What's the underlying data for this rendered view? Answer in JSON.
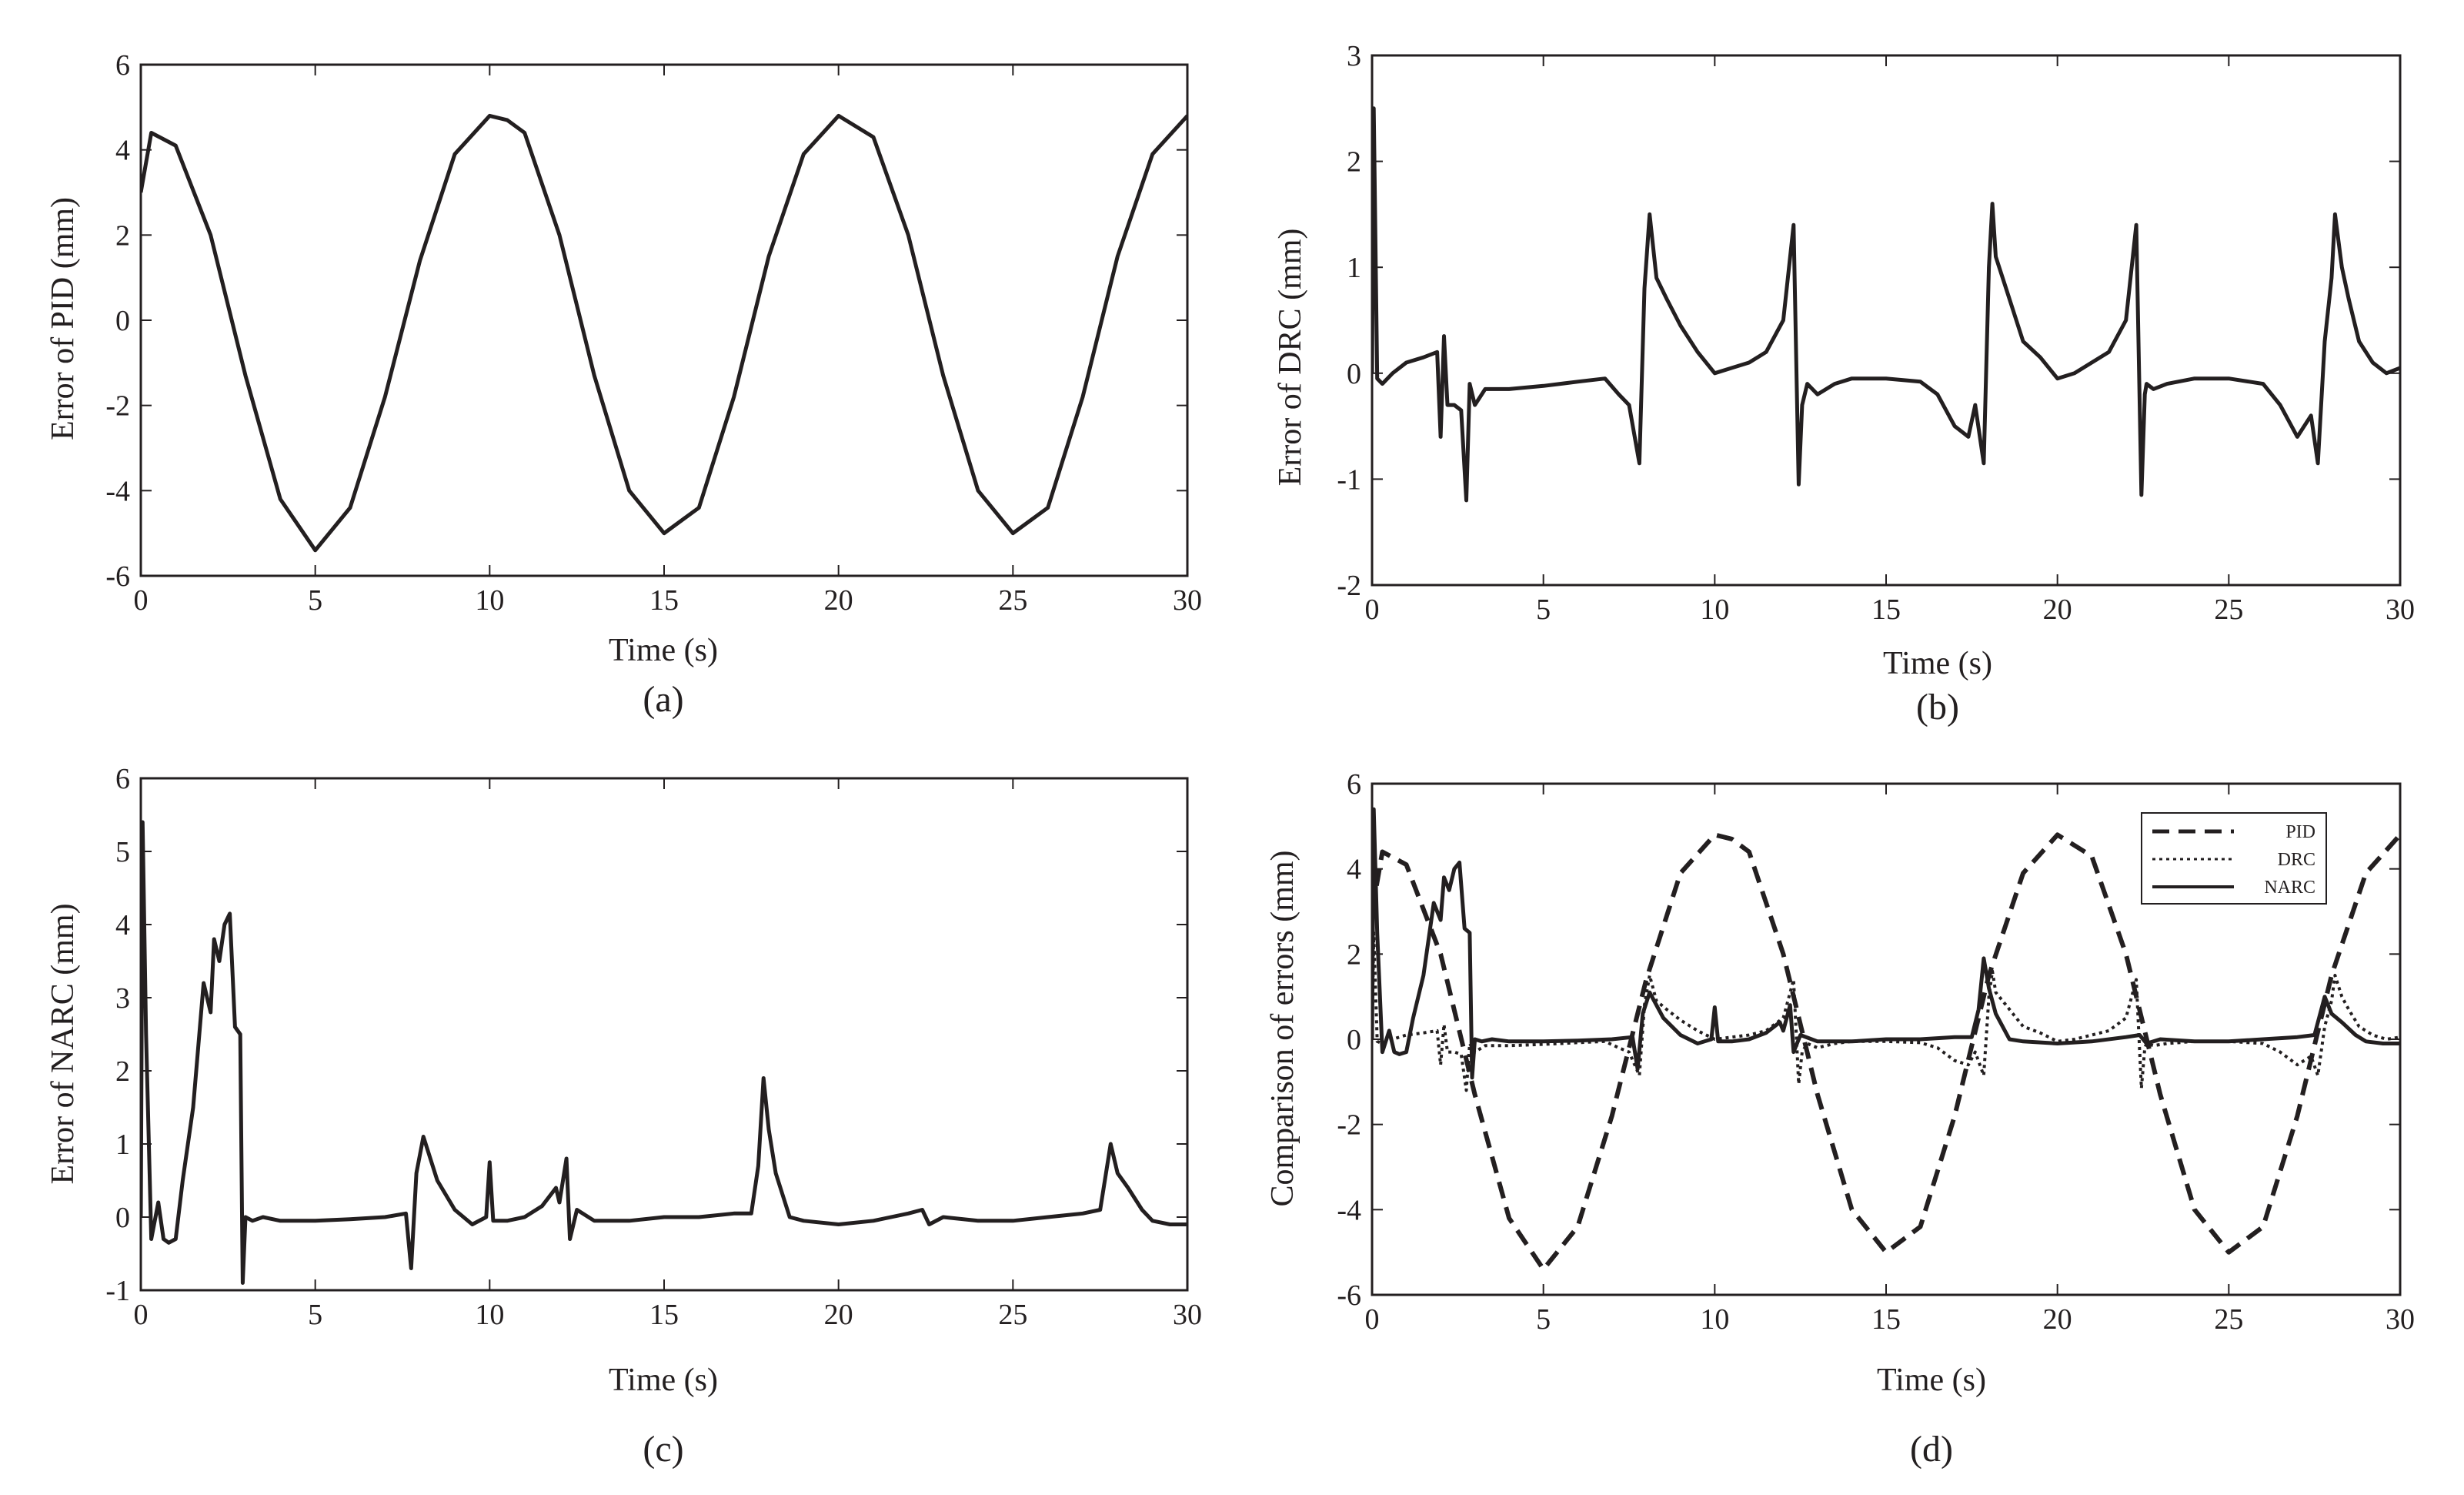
{
  "figure": {
    "background": "#ffffff",
    "ink": "#231f20"
  },
  "chart_data": [
    {
      "type": "line",
      "panel": "a",
      "caption": "(a)",
      "xlabel": "Time (s)",
      "ylabel": "Error of PID (mm)",
      "xlim": [
        0,
        30
      ],
      "ylim": [
        -6,
        6
      ],
      "xticks": [
        0,
        5,
        10,
        15,
        20,
        25,
        30
      ],
      "yticks": [
        -6,
        -4,
        -2,
        0,
        2,
        4,
        6
      ],
      "legend": null,
      "series": [
        {
          "name": "PID",
          "style": "solid",
          "x": [
            0,
            0.3,
            1,
            2,
            3,
            4,
            5,
            6,
            7,
            8,
            9,
            10,
            10.5,
            11,
            12,
            13,
            14,
            15,
            16,
            17,
            18,
            19,
            20,
            21,
            22,
            23,
            24,
            25,
            26,
            27,
            28,
            29,
            30
          ],
          "y": [
            3.0,
            4.4,
            4.1,
            2.0,
            -1.3,
            -4.2,
            -5.4,
            -4.4,
            -1.8,
            1.4,
            3.9,
            4.8,
            4.7,
            4.4,
            2.0,
            -1.3,
            -4.0,
            -5.0,
            -4.4,
            -1.8,
            1.5,
            3.9,
            4.8,
            4.3,
            2.0,
            -1.3,
            -4.0,
            -5.0,
            -4.4,
            -1.8,
            1.5,
            3.9,
            4.8
          ]
        }
      ]
    },
    {
      "type": "line",
      "panel": "b",
      "caption": "(b)",
      "xlabel": "Time (s)",
      "ylabel": "Error of DRC (mm)",
      "xlim": [
        0,
        30
      ],
      "ylim": [
        -2,
        3
      ],
      "xticks": [
        0,
        5,
        10,
        15,
        20,
        25,
        30
      ],
      "yticks": [
        -2,
        -1,
        0,
        1,
        2,
        3
      ],
      "legend": null,
      "series": [
        {
          "name": "DRC",
          "style": "solid",
          "x": [
            0,
            0.05,
            0.15,
            0.3,
            0.6,
            1.0,
            1.5,
            1.9,
            2.0,
            2.1,
            2.2,
            2.4,
            2.6,
            2.75,
            2.85,
            3.0,
            3.3,
            4.0,
            5.0,
            6.0,
            6.8,
            7.2,
            7.5,
            7.8,
            7.95,
            8.1,
            8.3,
            8.6,
            9.0,
            9.5,
            10.0,
            10.5,
            11.0,
            11.5,
            12.0,
            12.3,
            12.45,
            12.55,
            12.7,
            13.0,
            13.5,
            14.0,
            15.0,
            16.0,
            16.5,
            17.0,
            17.4,
            17.6,
            17.85,
            18.0,
            18.1,
            18.2,
            18.5,
            19.0,
            19.5,
            20.0,
            20.5,
            21.0,
            21.5,
            22.0,
            22.3,
            22.45,
            22.55,
            22.6,
            22.8,
            23.2,
            24.0,
            25.0,
            26.0,
            26.5,
            27.0,
            27.4,
            27.6,
            27.8,
            28.0,
            28.1,
            28.3,
            28.5,
            28.8,
            29.2,
            29.6,
            30.0
          ],
          "y": [
            0,
            2.5,
            -0.05,
            -0.1,
            0.0,
            0.1,
            0.15,
            0.2,
            -0.6,
            0.35,
            -0.3,
            -0.3,
            -0.35,
            -1.2,
            -0.1,
            -0.3,
            -0.15,
            -0.15,
            -0.12,
            -0.08,
            -0.05,
            -0.2,
            -0.3,
            -0.85,
            0.8,
            1.5,
            0.9,
            0.7,
            0.45,
            0.2,
            0.0,
            0.05,
            0.1,
            0.2,
            0.5,
            1.4,
            -1.05,
            -0.3,
            -0.1,
            -0.2,
            -0.1,
            -0.05,
            -0.05,
            -0.08,
            -0.2,
            -0.5,
            -0.6,
            -0.3,
            -0.85,
            1.0,
            1.6,
            1.1,
            0.8,
            0.3,
            0.15,
            -0.05,
            0.0,
            0.1,
            0.2,
            0.5,
            1.4,
            -1.15,
            -0.2,
            -0.1,
            -0.15,
            -0.1,
            -0.05,
            -0.05,
            -0.1,
            -0.3,
            -0.6,
            -0.4,
            -0.85,
            0.3,
            0.9,
            1.5,
            1.0,
            0.7,
            0.3,
            0.1,
            0.0,
            0.05
          ]
        }
      ]
    },
    {
      "type": "line",
      "panel": "c",
      "caption": "(c)",
      "xlabel": "Time (s)",
      "ylabel": "Error of NARC (mm)",
      "xlim": [
        0,
        30
      ],
      "ylim": [
        -1,
        6
      ],
      "xticks": [
        0,
        5,
        10,
        15,
        20,
        25,
        30
      ],
      "yticks": [
        -1,
        0,
        1,
        2,
        3,
        4,
        5,
        6
      ],
      "legend": null,
      "series": [
        {
          "name": "NARC",
          "style": "solid",
          "x": [
            0,
            0.05,
            0.15,
            0.3,
            0.5,
            0.65,
            0.8,
            1.0,
            1.2,
            1.5,
            1.8,
            2.0,
            2.1,
            2.25,
            2.4,
            2.55,
            2.7,
            2.85,
            2.92,
            3.0,
            3.2,
            3.5,
            4.0,
            5.0,
            6.0,
            7.0,
            7.6,
            7.75,
            7.9,
            8.1,
            8.5,
            9.0,
            9.5,
            9.9,
            10.0,
            10.1,
            10.5,
            11.0,
            11.5,
            11.9,
            12.0,
            12.2,
            12.3,
            12.5,
            13.0,
            14.0,
            15.0,
            16.0,
            17.0,
            17.5,
            17.7,
            17.85,
            18.0,
            18.2,
            18.6,
            19.0,
            20.0,
            21.0,
            22.0,
            22.4,
            22.6,
            23.0,
            24.0,
            25.0,
            26.0,
            27.0,
            27.5,
            27.8,
            28.0,
            28.3,
            28.7,
            29.0,
            29.5,
            30.0
          ],
          "y": [
            0,
            5.4,
            2.5,
            -0.3,
            0.2,
            -0.3,
            -0.35,
            -0.3,
            0.5,
            1.5,
            3.2,
            2.8,
            3.8,
            3.5,
            4.0,
            4.15,
            2.6,
            2.5,
            -0.9,
            0.0,
            -0.05,
            0.0,
            -0.05,
            -0.05,
            -0.03,
            0.0,
            0.05,
            -0.7,
            0.6,
            1.1,
            0.5,
            0.1,
            -0.1,
            0.0,
            0.75,
            -0.05,
            -0.05,
            0.0,
            0.15,
            0.4,
            0.2,
            0.8,
            -0.3,
            0.1,
            -0.05,
            -0.05,
            0.0,
            0.0,
            0.05,
            0.05,
            0.7,
            1.9,
            1.2,
            0.6,
            0.0,
            -0.05,
            -0.1,
            -0.05,
            0.05,
            0.1,
            -0.1,
            0.0,
            -0.05,
            -0.05,
            0.0,
            0.05,
            0.1,
            1.0,
            0.6,
            0.4,
            0.1,
            -0.05,
            -0.1,
            -0.1
          ]
        }
      ]
    },
    {
      "type": "line",
      "panel": "d",
      "caption": "(d)",
      "xlabel": "Time (s)",
      "ylabel": "Comparison of errors (mm)",
      "xlim": [
        0,
        30
      ],
      "ylim": [
        -6,
        6
      ],
      "xticks": [
        0,
        5,
        10,
        15,
        20,
        25,
        30
      ],
      "yticks": [
        -6,
        -4,
        -2,
        0,
        2,
        4,
        6
      ],
      "legend": {
        "position": "top-right",
        "entries": [
          "PID",
          "DRC",
          "NARC"
        ]
      },
      "series": [
        {
          "name": "PID",
          "style": "dashed",
          "x": [
            0,
            0.3,
            1,
            2,
            3,
            4,
            5,
            6,
            7,
            8,
            9,
            10,
            10.5,
            11,
            12,
            13,
            14,
            15,
            16,
            17,
            18,
            19,
            20,
            21,
            22,
            23,
            24,
            25,
            26,
            27,
            28,
            29,
            30
          ],
          "y": [
            3.0,
            4.4,
            4.1,
            2.0,
            -1.3,
            -4.2,
            -5.4,
            -4.4,
            -1.8,
            1.4,
            3.9,
            4.8,
            4.7,
            4.4,
            2.0,
            -1.3,
            -4.0,
            -5.0,
            -4.4,
            -1.8,
            1.5,
            3.9,
            4.8,
            4.3,
            2.0,
            -1.3,
            -4.0,
            -5.0,
            -4.4,
            -1.8,
            1.5,
            3.9,
            4.8
          ]
        },
        {
          "name": "DRC",
          "style": "dotted",
          "x": [
            0,
            0.05,
            0.15,
            0.3,
            0.6,
            1.0,
            1.5,
            1.9,
            2.0,
            2.1,
            2.2,
            2.4,
            2.6,
            2.75,
            2.85,
            3.0,
            3.3,
            4.0,
            5.0,
            6.0,
            6.8,
            7.2,
            7.5,
            7.8,
            7.95,
            8.1,
            8.3,
            8.6,
            9.0,
            9.5,
            10.0,
            10.5,
            11.0,
            11.5,
            12.0,
            12.3,
            12.45,
            12.55,
            12.7,
            13.0,
            13.5,
            14.0,
            15.0,
            16.0,
            16.5,
            17.0,
            17.4,
            17.6,
            17.85,
            18.0,
            18.1,
            18.2,
            18.5,
            19.0,
            19.5,
            20.0,
            20.5,
            21.0,
            21.5,
            22.0,
            22.3,
            22.45,
            22.55,
            22.6,
            22.8,
            23.2,
            24.0,
            25.0,
            26.0,
            26.5,
            27.0,
            27.4,
            27.6,
            27.8,
            28.0,
            28.1,
            28.3,
            28.5,
            28.8,
            29.2,
            29.6,
            30.0
          ],
          "y": [
            0,
            2.5,
            -0.05,
            -0.1,
            0.0,
            0.1,
            0.15,
            0.2,
            -0.6,
            0.35,
            -0.3,
            -0.3,
            -0.35,
            -1.2,
            -0.1,
            -0.3,
            -0.15,
            -0.15,
            -0.12,
            -0.08,
            -0.05,
            -0.2,
            -0.3,
            -0.85,
            0.8,
            1.5,
            0.9,
            0.7,
            0.45,
            0.2,
            0.0,
            0.05,
            0.1,
            0.2,
            0.5,
            1.4,
            -1.05,
            -0.3,
            -0.1,
            -0.2,
            -0.1,
            -0.05,
            -0.05,
            -0.08,
            -0.2,
            -0.5,
            -0.6,
            -0.3,
            -0.85,
            1.0,
            1.6,
            1.1,
            0.8,
            0.3,
            0.15,
            -0.05,
            0.0,
            0.1,
            0.2,
            0.5,
            1.4,
            -1.15,
            -0.2,
            -0.1,
            -0.15,
            -0.1,
            -0.05,
            -0.05,
            -0.1,
            -0.3,
            -0.6,
            -0.4,
            -0.85,
            0.3,
            0.9,
            1.5,
            1.0,
            0.7,
            0.3,
            0.1,
            0.0,
            0.05
          ]
        },
        {
          "name": "NARC",
          "style": "solid",
          "x": [
            0,
            0.05,
            0.15,
            0.3,
            0.5,
            0.65,
            0.8,
            1.0,
            1.2,
            1.5,
            1.8,
            2.0,
            2.1,
            2.25,
            2.4,
            2.55,
            2.7,
            2.85,
            2.92,
            3.0,
            3.2,
            3.5,
            4.0,
            5.0,
            6.0,
            7.0,
            7.6,
            7.75,
            7.9,
            8.1,
            8.5,
            9.0,
            9.5,
            9.9,
            10.0,
            10.1,
            10.5,
            11.0,
            11.5,
            11.9,
            12.0,
            12.2,
            12.3,
            12.5,
            13.0,
            14.0,
            15.0,
            16.0,
            17.0,
            17.5,
            17.7,
            17.85,
            18.0,
            18.2,
            18.6,
            19.0,
            20.0,
            21.0,
            22.0,
            22.4,
            22.6,
            23.0,
            24.0,
            25.0,
            26.0,
            27.0,
            27.5,
            27.8,
            28.0,
            28.3,
            28.7,
            29.0,
            29.5,
            30.0
          ],
          "y": [
            0,
            5.4,
            2.5,
            -0.3,
            0.2,
            -0.3,
            -0.35,
            -0.3,
            0.5,
            1.5,
            3.2,
            2.8,
            3.8,
            3.5,
            4.0,
            4.15,
            2.6,
            2.5,
            -0.9,
            0.0,
            -0.05,
            0.0,
            -0.05,
            -0.05,
            -0.03,
            0.0,
            0.05,
            -0.7,
            0.6,
            1.1,
            0.5,
            0.1,
            -0.1,
            0.0,
            0.75,
            -0.05,
            -0.05,
            0.0,
            0.15,
            0.4,
            0.2,
            0.8,
            -0.3,
            0.1,
            -0.05,
            -0.05,
            0.0,
            0.0,
            0.05,
            0.05,
            0.7,
            1.9,
            1.2,
            0.6,
            0.0,
            -0.05,
            -0.1,
            -0.05,
            0.05,
            0.1,
            -0.1,
            0.0,
            -0.05,
            -0.05,
            0.0,
            0.05,
            0.1,
            1.0,
            0.6,
            0.4,
            0.1,
            -0.05,
            -0.1,
            -0.1
          ]
        }
      ]
    }
  ]
}
